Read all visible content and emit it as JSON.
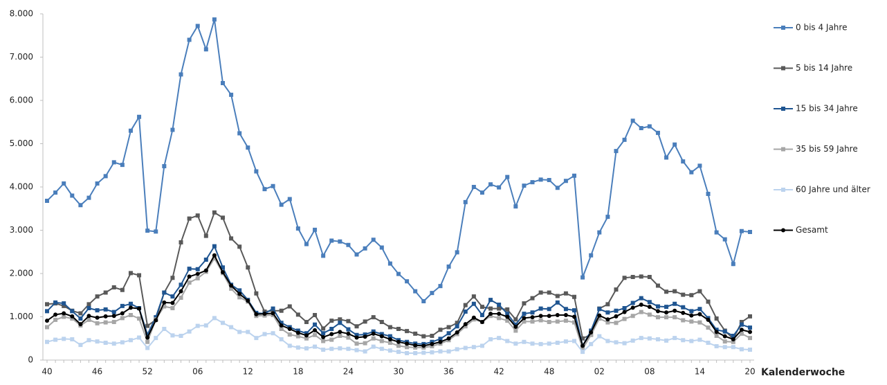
{
  "chart_data": {
    "type": "line",
    "x_label": "Kalenderwoche",
    "categories": [
      "40",
      null,
      null,
      null,
      null,
      null,
      "46",
      null,
      null,
      null,
      null,
      null,
      "52",
      null,
      null,
      null,
      null,
      null,
      "06",
      null,
      null,
      null,
      null,
      null,
      "12",
      null,
      null,
      null,
      null,
      null,
      "18",
      null,
      null,
      null,
      null,
      null,
      "24",
      null,
      null,
      null,
      null,
      null,
      "30",
      null,
      null,
      null,
      null,
      null,
      "36",
      null,
      null,
      null,
      null,
      null,
      "42",
      null,
      null,
      null,
      null,
      null,
      "48",
      null,
      null,
      null,
      null,
      null,
      "02",
      null,
      null,
      null,
      null,
      null,
      "08",
      null,
      null,
      null,
      null,
      null,
      "14",
      null,
      null,
      null,
      null,
      null,
      "20"
    ],
    "ylim": [
      0,
      8000
    ],
    "yticks": [
      0,
      {
        "value": 1000,
        "label": "1.000"
      },
      {
        "value": 2000,
        "label": "2.000"
      },
      {
        "value": 3000,
        "label": "3.000"
      },
      {
        "value": 4000,
        "label": "4.000"
      },
      {
        "value": 5000,
        "label": "5.000"
      },
      {
        "value": 6000,
        "label": "6.000"
      },
      {
        "value": 7000,
        "label": "7.000"
      },
      {
        "value": 8000,
        "label": "8.000"
      }
    ],
    "grid": false,
    "legend": "right",
    "series": [
      {
        "name": "0 bis 4 Jahre",
        "color": "#4a7ebb",
        "marker": "square",
        "values": [
          3680,
          3870,
          4080,
          3800,
          3580,
          3750,
          4080,
          4250,
          4570,
          4510,
          5300,
          5620,
          2990,
          2970,
          4480,
          5320,
          6600,
          7400,
          7720,
          7180,
          7870,
          6400,
          6130,
          5240,
          4910,
          4360,
          3950,
          4020,
          3590,
          3720,
          3040,
          2680,
          3010,
          2410,
          2760,
          2740,
          2660,
          2440,
          2580,
          2780,
          2600,
          2230,
          1990,
          1820,
          1590,
          1360,
          1550,
          1710,
          2160,
          2490,
          3650,
          4000,
          3870,
          4060,
          3990,
          4230,
          3550,
          4030,
          4110,
          4170,
          4160,
          3980,
          4140,
          4260,
          1910,
          2420,
          2950,
          3310,
          4830,
          5090,
          5530,
          5360,
          5400,
          5250,
          4680,
          4980,
          4590,
          4340,
          4490,
          3840,
          2950,
          2790,
          2220,
          2980,
          2960
        ]
      },
      {
        "name": "5 bis 14 Jahre",
        "color": "#595959",
        "marker": "square",
        "values": [
          1290,
          1310,
          1250,
          1140,
          1080,
          1290,
          1470,
          1560,
          1680,
          1620,
          2010,
          1960,
          790,
          930,
          1560,
          1900,
          2720,
          3270,
          3340,
          2870,
          3410,
          3290,
          2810,
          2620,
          2140,
          1540,
          1120,
          1140,
          1140,
          1240,
          1050,
          880,
          1040,
          730,
          910,
          940,
          900,
          780,
          890,
          990,
          880,
          760,
          720,
          670,
          610,
          550,
          560,
          700,
          760,
          860,
          1270,
          1470,
          1230,
          1190,
          1190,
          1170,
          940,
          1310,
          1430,
          1560,
          1560,
          1480,
          1540,
          1460,
          500,
          590,
          1190,
          1290,
          1630,
          1900,
          1920,
          1930,
          1920,
          1720,
          1580,
          1590,
          1510,
          1500,
          1590,
          1350,
          960,
          680,
          490,
          880,
          1010
        ]
      },
      {
        "name": "15 bis 34 Jahre",
        "color": "#1f5591",
        "marker": "square",
        "values": [
          1130,
          1330,
          1310,
          1130,
          960,
          1200,
          1150,
          1170,
          1110,
          1250,
          1300,
          1200,
          590,
          990,
          1560,
          1470,
          1740,
          2110,
          2100,
          2320,
          2630,
          2140,
          1740,
          1610,
          1390,
          1090,
          1070,
          1190,
          860,
          760,
          680,
          620,
          820,
          620,
          720,
          860,
          710,
          580,
          590,
          660,
          600,
          550,
          460,
          420,
          380,
          370,
          420,
          490,
          620,
          780,
          1120,
          1300,
          1040,
          1390,
          1280,
          1070,
          820,
          1070,
          1100,
          1190,
          1180,
          1330,
          1180,
          1150,
          330,
          680,
          1180,
          1100,
          1140,
          1200,
          1320,
          1430,
          1340,
          1240,
          1230,
          1300,
          1220,
          1130,
          1180,
          970,
          700,
          660,
          560,
          820,
          750
        ]
      },
      {
        "name": "35 bis 59 Jahre",
        "color": "#a6a6a6",
        "marker": "square",
        "values": [
          760,
          930,
          1000,
          960,
          800,
          930,
          850,
          870,
          880,
          970,
          1040,
          960,
          420,
          940,
          1240,
          1200,
          1440,
          1790,
          1890,
          2040,
          2350,
          2010,
          1650,
          1450,
          1350,
          1020,
          1030,
          1040,
          720,
          590,
          550,
          500,
          580,
          440,
          470,
          560,
          520,
          380,
          390,
          500,
          440,
          400,
          330,
          300,
          290,
          290,
          320,
          380,
          460,
          600,
          780,
          940,
          880,
          1020,
          970,
          910,
          680,
          890,
          890,
          920,
          880,
          890,
          910,
          870,
          260,
          580,
          960,
          870,
          860,
          950,
          1020,
          1110,
          1050,
          990,
          990,
          990,
          920,
          890,
          870,
          750,
          560,
          430,
          420,
          610,
          510
        ]
      },
      {
        "name": "60 Jahre und älter",
        "color": "#bcd3ee",
        "marker": "square",
        "values": [
          420,
          470,
          490,
          480,
          350,
          460,
          430,
          400,
          380,
          410,
          460,
          520,
          280,
          510,
          720,
          570,
          560,
          660,
          790,
          800,
          970,
          860,
          760,
          650,
          650,
          510,
          600,
          620,
          480,
          330,
          290,
          270,
          310,
          240,
          260,
          270,
          260,
          230,
          200,
          310,
          260,
          220,
          190,
          160,
          160,
          170,
          180,
          200,
          200,
          250,
          280,
          300,
          330,
          480,
          510,
          440,
          380,
          420,
          380,
          370,
          380,
          400,
          430,
          440,
          190,
          370,
          550,
          440,
          410,
          390,
          450,
          510,
          500,
          480,
          450,
          510,
          460,
          440,
          470,
          400,
          320,
          300,
          300,
          250,
          240
        ]
      },
      {
        "name": "Gesamt",
        "color": "#000000",
        "marker": "circle",
        "values": [
          910,
          1050,
          1080,
          1010,
          830,
          1020,
          980,
          1010,
          1020,
          1080,
          1210,
          1190,
          520,
          920,
          1330,
          1320,
          1590,
          1930,
          1990,
          2070,
          2420,
          2030,
          1720,
          1530,
          1370,
          1060,
          1070,
          1080,
          800,
          720,
          630,
          570,
          690,
          530,
          600,
          650,
          610,
          520,
          540,
          610,
          550,
          480,
          420,
          380,
          340,
          330,
          370,
          420,
          500,
          640,
          830,
          980,
          880,
          1070,
          1070,
          1000,
          770,
          970,
          990,
          1020,
          1020,
          1040,
          1040,
          1000,
          330,
          640,
          1030,
          940,
          1010,
          1110,
          1210,
          1280,
          1230,
          1130,
          1100,
          1140,
          1090,
          1030,
          1060,
          930,
          650,
          550,
          480,
          700,
          650
        ]
      }
    ]
  }
}
